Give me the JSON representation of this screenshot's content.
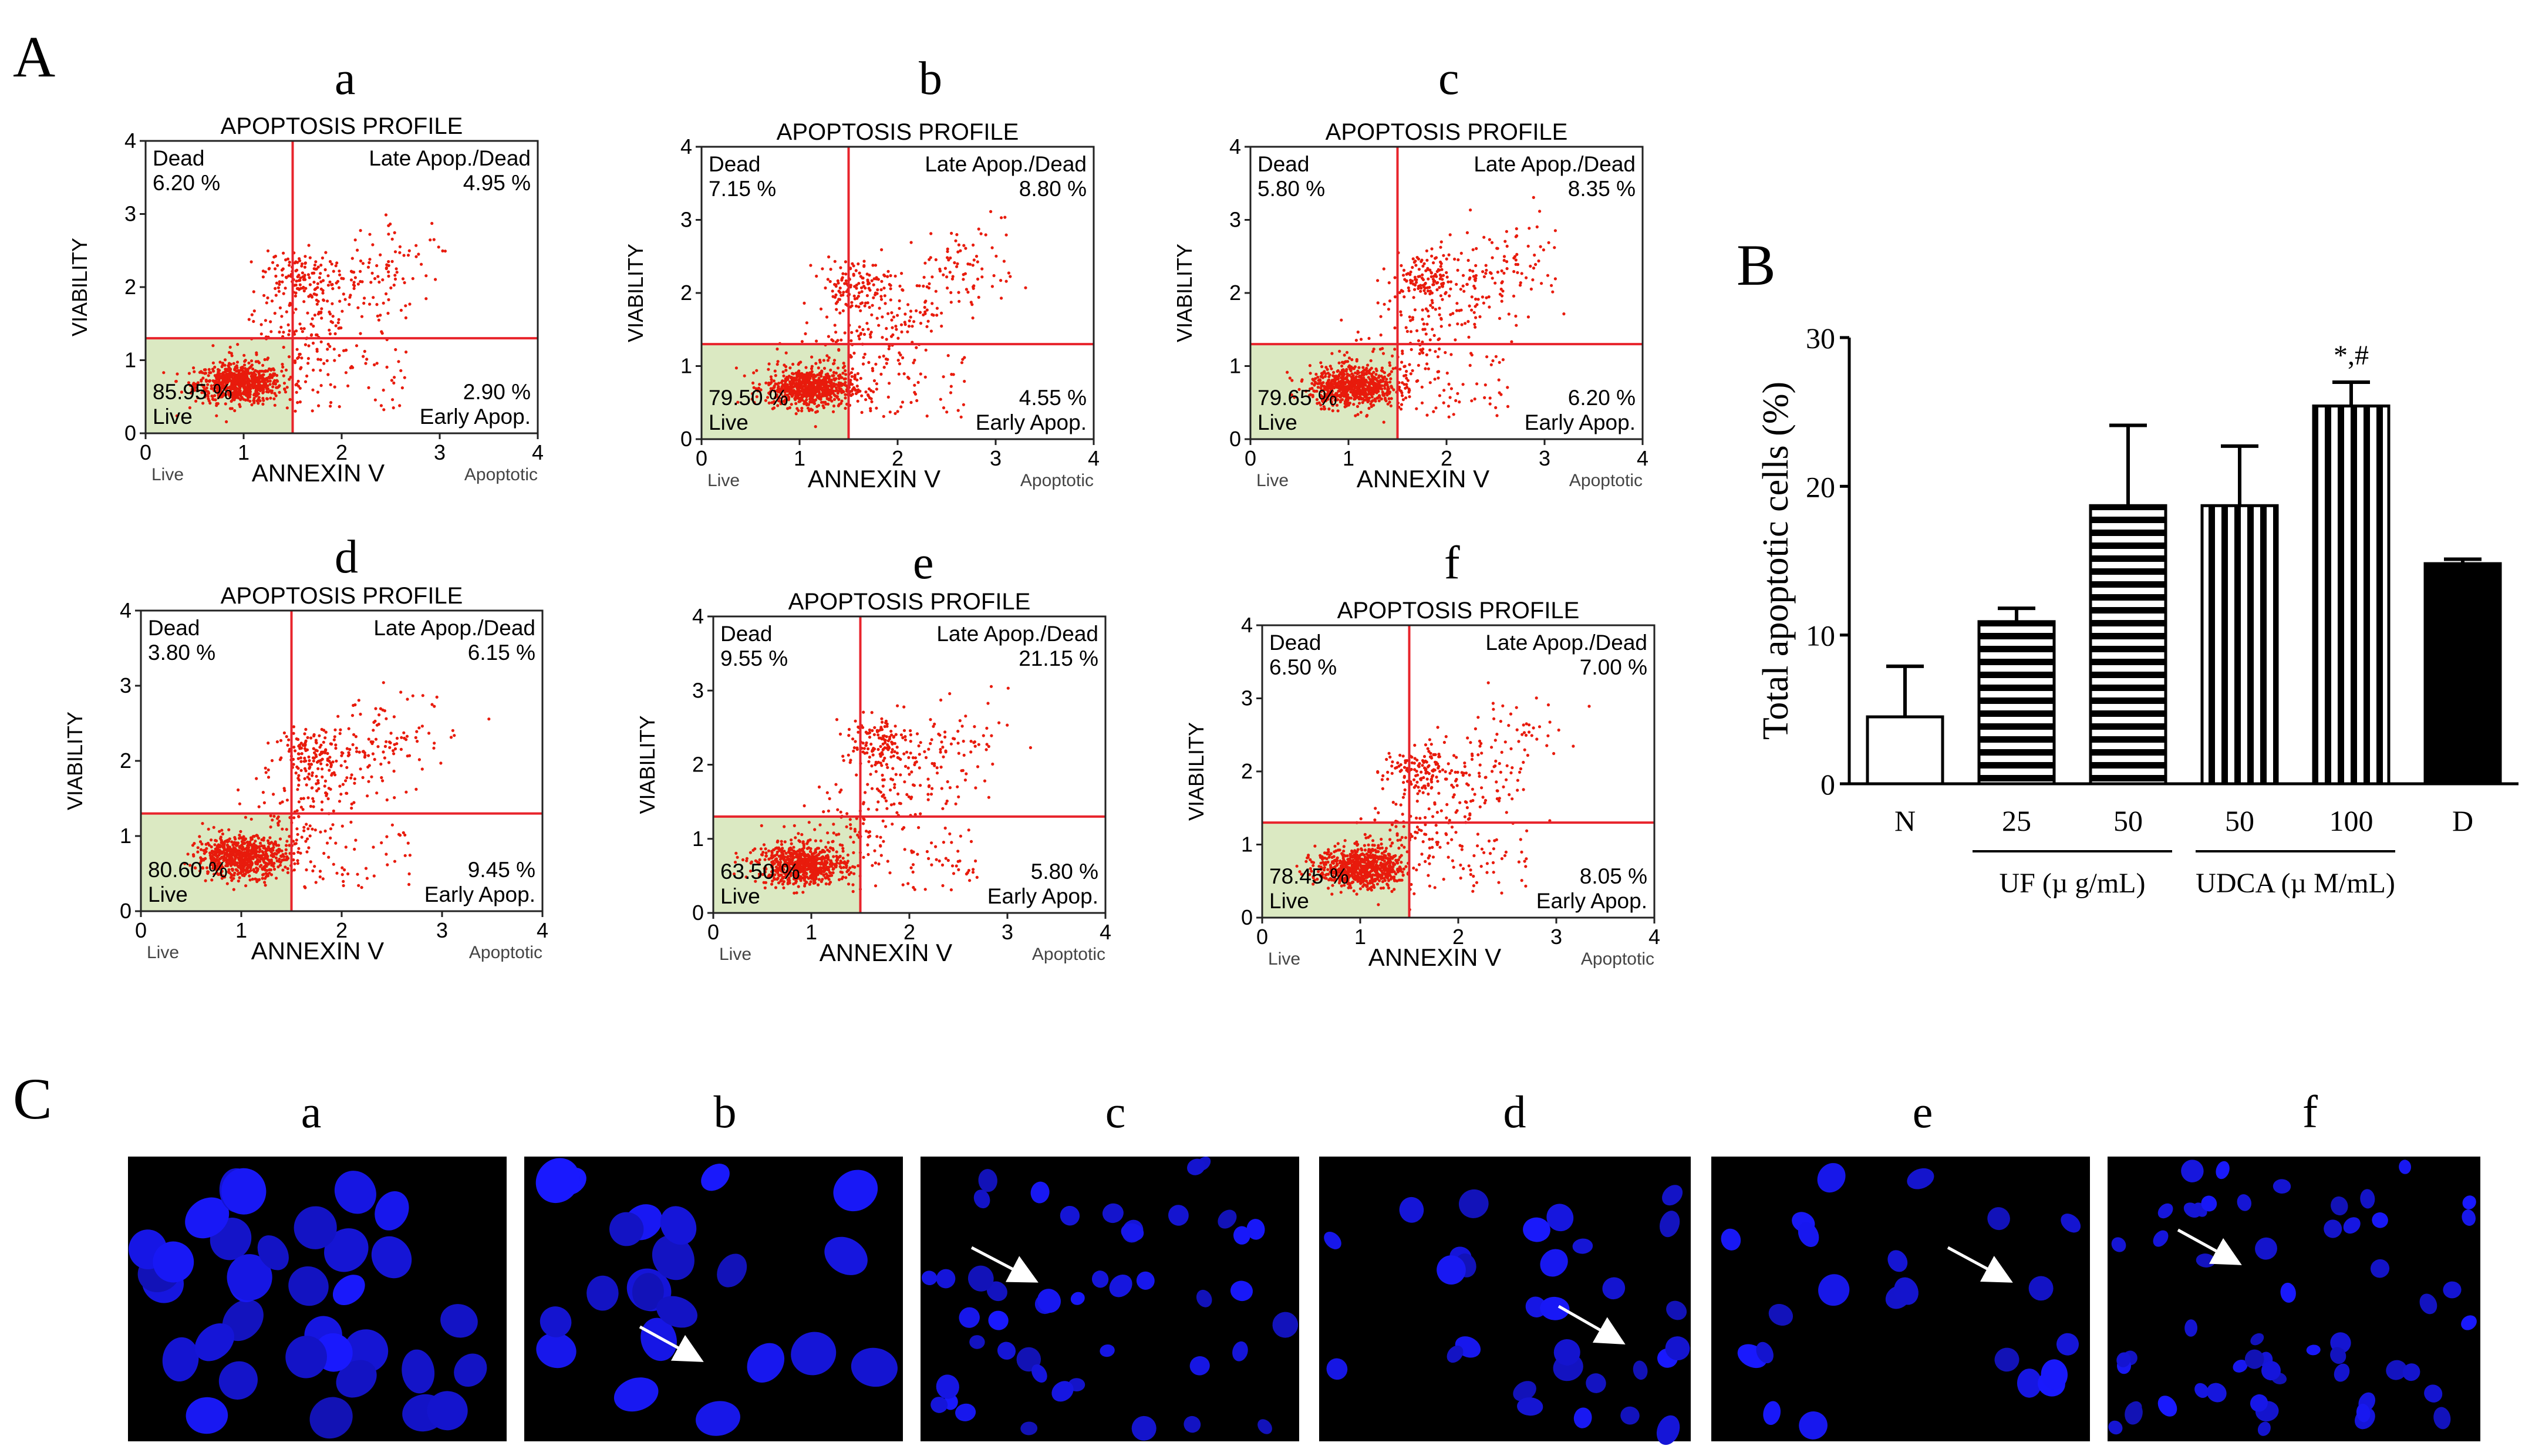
{
  "panel_labels": {
    "A": "A",
    "B": "B",
    "C": "C"
  },
  "chart_data": [
    {
      "type": "scatter",
      "panel": "a",
      "title": "APOPTOSIS PROFILE",
      "xlabel": "ANNEXIN V",
      "ylabel": "VIABILITY",
      "x_left_label": "Live",
      "x_right_label": "Apoptotic",
      "xlim": [
        0,
        4
      ],
      "ylim": [
        0,
        4
      ],
      "x_ticks": [
        "0",
        "1",
        "2",
        "3",
        "4"
      ],
      "y_ticks": [
        "0",
        "1",
        "2",
        "3",
        "4"
      ],
      "gate": {
        "x": 1.5,
        "y": 1.3
      },
      "quadrants": {
        "dead": {
          "name": "Dead",
          "value": "6.20 %"
        },
        "late": {
          "name": "Late Apop./Dead",
          "value": "4.95 %"
        },
        "live": {
          "name": "Live",
          "value": "85.95 %"
        },
        "early": {
          "name": "Early Apop.",
          "value": "2.90 %"
        }
      },
      "cluster": {
        "cx": 0.95,
        "cy": 0.68,
        "upper_cx": 1.55,
        "upper_cy": 2.15
      }
    },
    {
      "type": "scatter",
      "panel": "b",
      "title": "APOPTOSIS PROFILE",
      "xlabel": "ANNEXIN V",
      "ylabel": "VIABILITY",
      "x_left_label": "Live",
      "x_right_label": "Apoptotic",
      "xlim": [
        0,
        4
      ],
      "ylim": [
        0,
        4
      ],
      "x_ticks": [
        "0",
        "1",
        "2",
        "3",
        "4"
      ],
      "y_ticks": [
        "0",
        "1",
        "2",
        "3",
        "4"
      ],
      "gate": {
        "x": 1.5,
        "y": 1.3
      },
      "quadrants": {
        "dead": {
          "name": "Dead",
          "value": "7.15 %"
        },
        "late": {
          "name": "Late Apop./Dead",
          "value": "8.80 %"
        },
        "live": {
          "name": "Live",
          "value": "79.50 %"
        },
        "early": {
          "name": "Early Apop.",
          "value": "4.55 %"
        }
      },
      "cluster": {
        "cx": 1.1,
        "cy": 0.7,
        "upper_cx": 1.55,
        "upper_cy": 2.1
      }
    },
    {
      "type": "scatter",
      "panel": "c",
      "title": "APOPTOSIS PROFILE",
      "xlabel": "ANNEXIN V",
      "ylabel": "VIABILITY",
      "x_left_label": "Live",
      "x_right_label": "Apoptotic",
      "xlim": [
        0,
        4
      ],
      "ylim": [
        0,
        4
      ],
      "x_ticks": [
        "0",
        "1",
        "2",
        "3",
        "4"
      ],
      "y_ticks": [
        "0",
        "1",
        "2",
        "3",
        "4"
      ],
      "gate": {
        "x": 1.5,
        "y": 1.3
      },
      "quadrants": {
        "dead": {
          "name": "Dead",
          "value": "5.80 %"
        },
        "late": {
          "name": "Late Apop./Dead",
          "value": "8.35 %"
        },
        "live": {
          "name": "Live",
          "value": "79.65 %"
        },
        "early": {
          "name": "Early Apop.",
          "value": "6.20 %"
        }
      },
      "cluster": {
        "cx": 1.05,
        "cy": 0.72,
        "upper_cx": 1.8,
        "upper_cy": 2.2
      }
    },
    {
      "type": "scatter",
      "panel": "d",
      "title": "APOPTOSIS PROFILE",
      "xlabel": "ANNEXIN V",
      "ylabel": "VIABILITY",
      "x_left_label": "Live",
      "x_right_label": "Apoptotic",
      "xlim": [
        0,
        4
      ],
      "ylim": [
        0,
        4
      ],
      "x_ticks": [
        "0",
        "1",
        "2",
        "3",
        "4"
      ],
      "y_ticks": [
        "0",
        "1",
        "2",
        "3",
        "4"
      ],
      "gate": {
        "x": 1.5,
        "y": 1.3
      },
      "quadrants": {
        "dead": {
          "name": "Dead",
          "value": "3.80 %"
        },
        "late": {
          "name": "Late Apop./Dead",
          "value": "6.15 %"
        },
        "live": {
          "name": "Live",
          "value": "80.60 %"
        },
        "early": {
          "name": "Early Apop.",
          "value": "9.45 %"
        }
      },
      "cluster": {
        "cx": 1.0,
        "cy": 0.72,
        "upper_cx": 1.7,
        "upper_cy": 2.1
      }
    },
    {
      "type": "scatter",
      "panel": "e",
      "title": "APOPTOSIS PROFILE",
      "xlabel": "ANNEXIN V",
      "ylabel": "VIABILITY",
      "x_left_label": "Live",
      "x_right_label": "Apoptotic",
      "xlim": [
        0,
        4
      ],
      "ylim": [
        0,
        4
      ],
      "x_ticks": [
        "0",
        "1",
        "2",
        "3",
        "4"
      ],
      "y_ticks": [
        "0",
        "1",
        "2",
        "3",
        "4"
      ],
      "gate": {
        "x": 1.5,
        "y": 1.3
      },
      "quadrants": {
        "dead": {
          "name": "Dead",
          "value": "9.55 %"
        },
        "late": {
          "name": "Late Apop./Dead",
          "value": "21.15 %"
        },
        "live": {
          "name": "Live",
          "value": "63.50 %"
        },
        "early": {
          "name": "Early Apop.",
          "value": "5.80 %"
        }
      },
      "cluster": {
        "cx": 0.9,
        "cy": 0.65,
        "upper_cx": 1.65,
        "upper_cy": 2.3
      }
    },
    {
      "type": "scatter",
      "panel": "f",
      "title": "APOPTOSIS PROFILE",
      "xlabel": "ANNEXIN V",
      "ylabel": "VIABILITY",
      "x_left_label": "Live",
      "x_right_label": "Apoptotic",
      "xlim": [
        0,
        4
      ],
      "ylim": [
        0,
        4
      ],
      "x_ticks": [
        "0",
        "1",
        "2",
        "3",
        "4"
      ],
      "y_ticks": [
        "0",
        "1",
        "2",
        "3",
        "4"
      ],
      "gate": {
        "x": 1.5,
        "y": 1.3
      },
      "quadrants": {
        "dead": {
          "name": "Dead",
          "value": "6.50 %"
        },
        "late": {
          "name": "Late Apop./Dead",
          "value": "7.00 %"
        },
        "live": {
          "name": "Live",
          "value": "78.45 %"
        },
        "early": {
          "name": "Early Apop.",
          "value": "8.05 %"
        }
      },
      "cluster": {
        "cx": 1.0,
        "cy": 0.68,
        "upper_cx": 1.6,
        "upper_cy": 2.0
      }
    },
    {
      "type": "bar",
      "panel": "B",
      "ylabel": "Total apoptotic cells (%)",
      "ylim": [
        0,
        30
      ],
      "y_ticks": [
        "0",
        "10",
        "20",
        "30"
      ],
      "categories": [
        "N",
        "25",
        "50",
        "50",
        "100",
        "D"
      ],
      "values": [
        4.5,
        10.9,
        18.7,
        18.7,
        25.4,
        14.8
      ],
      "errors": [
        3.4,
        0.9,
        5.4,
        4.0,
        1.6,
        0.3
      ],
      "patterns": [
        "white",
        "hstripe",
        "hstripe",
        "vstripe",
        "vstripe",
        "black"
      ],
      "annotations": [
        {
          "category_index": 4,
          "text": "*,#"
        }
      ],
      "groups": [
        {
          "label": "UF (µ g/mL)",
          "from": 1,
          "to": 2
        },
        {
          "label": "UDCA (µ M/mL)",
          "from": 3,
          "to": 4
        }
      ]
    }
  ],
  "micrographs": {
    "labels": [
      "a",
      "b",
      "c",
      "d",
      "e",
      "f"
    ]
  },
  "colors": {
    "dots": "#e81b0c",
    "gate": "#e8242c",
    "live_fill": "#dbe9c2",
    "nucleus": "#1c1cff",
    "bar_black": "#000000"
  }
}
